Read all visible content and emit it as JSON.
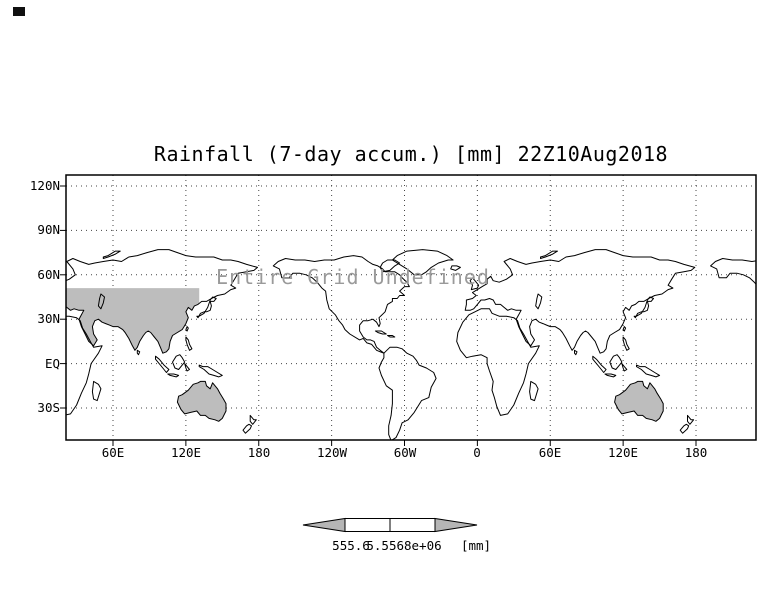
{
  "title": "Rainfall (7-day accum.) [mm] 22Z10Aug2018",
  "overlay_message": "Entire Grid Undefined",
  "axes": {
    "y_ticks": [
      "120N",
      "90N",
      "60N",
      "30N",
      "EQ",
      "30S"
    ],
    "x_ticks": [
      "60E",
      "120E",
      "180",
      "120W",
      "60W",
      "0",
      "60E",
      "120E",
      "180"
    ]
  },
  "colorbar": {
    "labels": [
      "555.6",
      "5.5568e+06"
    ],
    "unit_label": "[mm]"
  },
  "colors": {
    "background": "#ffffff",
    "line": "#000000",
    "grid_dots": "#444444",
    "land_shade": "#bdbdbd",
    "overlay_text": "#9a9a9a",
    "colorbar_arrow": "#b5b5b5"
  },
  "chart_data": {
    "type": "heatmap",
    "title": "Rainfall (7-day accum.) [mm] 22Z10Aug2018",
    "variable": "Rainfall (7-day accum.)",
    "unit": "mm",
    "time": "22Z10Aug2018",
    "projection": "global lat-lon world map, longitude wrapped past 360 degrees",
    "x_axis": {
      "tick_labels": [
        "60E",
        "120E",
        "180",
        "120W",
        "60W",
        "0",
        "60E",
        "120E",
        "180"
      ]
    },
    "y_axis": {
      "tick_labels": [
        "120N",
        "90N",
        "60N",
        "30N",
        "EQ",
        "30S"
      ]
    },
    "grid": "dotted gridlines at every labeled tick",
    "values": null,
    "status": "Entire Grid Undefined",
    "colorbar_ticks": [
      "555.6",
      "5.5568e+06"
    ],
    "colorbar_unit": "[mm]",
    "legend_position": "bottom horizontal colorbar with arrow end caps",
    "shading_note": "gray land shading visible over southern Asia and Australia"
  }
}
